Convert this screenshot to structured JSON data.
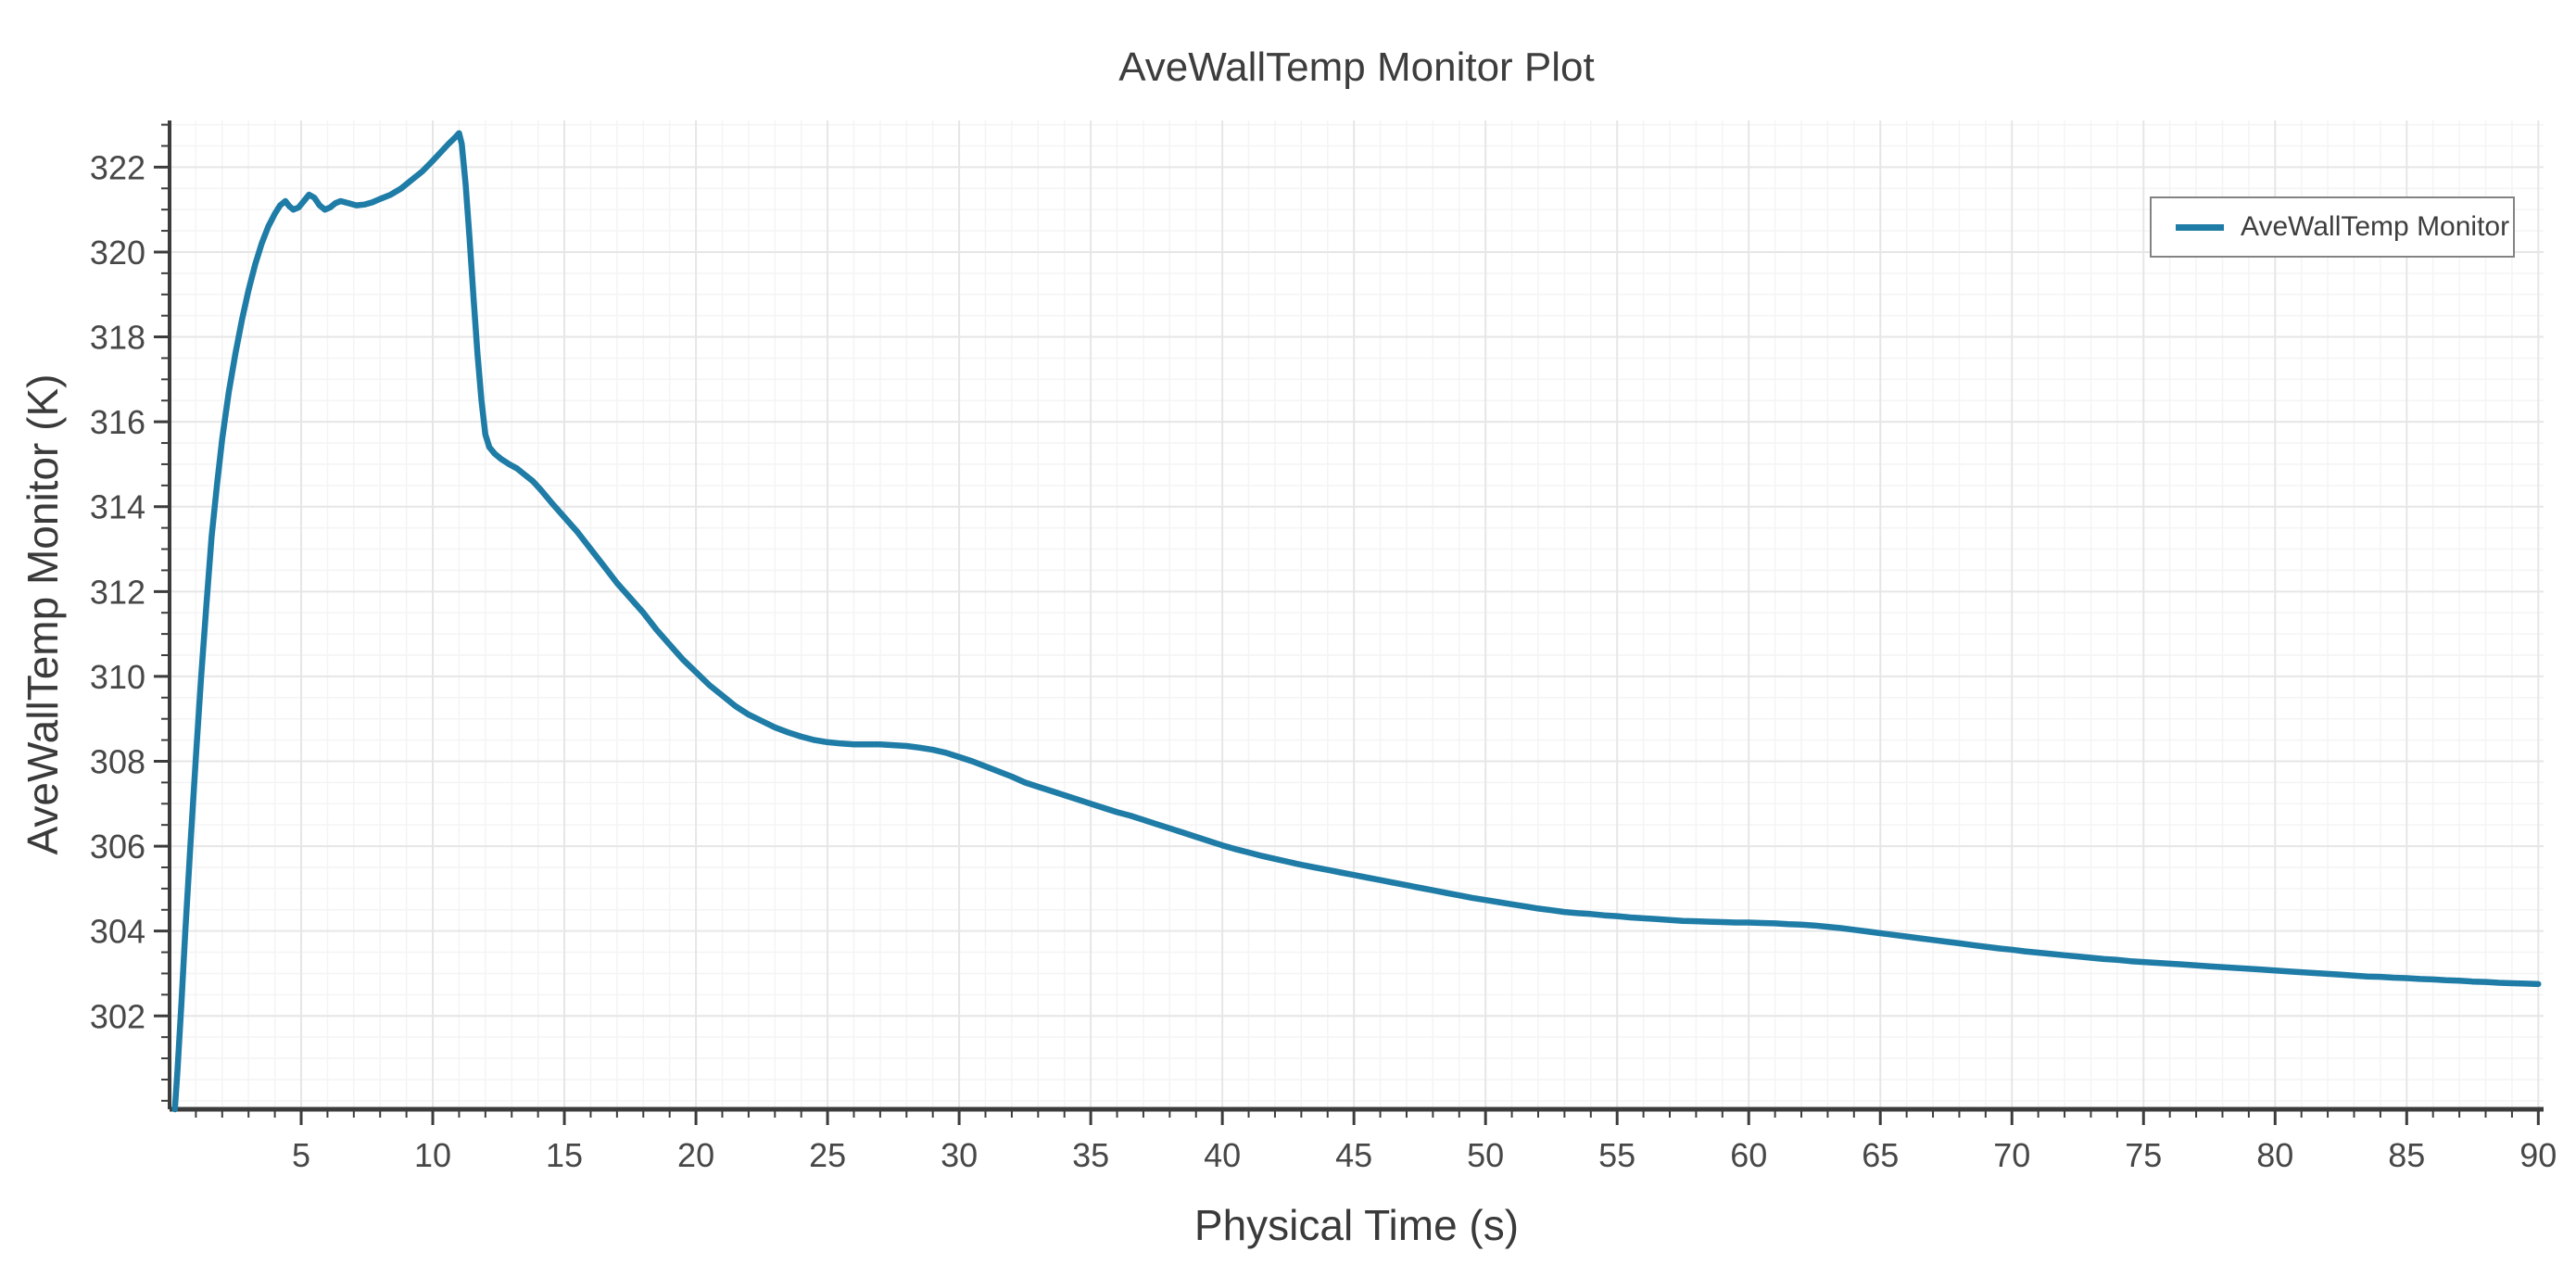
{
  "chart_data": {
    "type": "line",
    "title": "AveWallTemp Monitor Plot",
    "xlabel": "Physical Time (s)",
    "ylabel": "AveWallTemp Monitor (K)",
    "legend": {
      "label": "AveWallTemp Monitor",
      "position": "top-right",
      "border": true
    },
    "axes": {
      "xlim": [
        0,
        90.2
      ],
      "ylim": [
        299.8,
        323.1
      ],
      "x_major_ticks": [
        5,
        10,
        15,
        20,
        25,
        30,
        35,
        40,
        45,
        50,
        55,
        60,
        65,
        70,
        75,
        80,
        85,
        90
      ],
      "x_minor_step": 1,
      "y_major_ticks": [
        302,
        304,
        306,
        308,
        310,
        312,
        314,
        316,
        318,
        320,
        322
      ],
      "y_minor_step": 0.5,
      "grid": true,
      "grid_minor": true
    },
    "colors": {
      "line": "#1e7ca6",
      "grid_major": "#e6e6e6",
      "grid_minor": "#f4f4f4",
      "axis": "#3c3c3c",
      "tick_text": "#474747",
      "title_text": "#3d3d3d",
      "legend_border": "#838383",
      "background": "#ffffff"
    },
    "series": [
      {
        "name": "AveWallTemp Monitor",
        "color": "#1e7ca6",
        "points": [
          [
            0.2,
            299.8
          ],
          [
            0.3,
            300.7
          ],
          [
            0.45,
            302.3
          ],
          [
            0.6,
            304.0
          ],
          [
            0.8,
            306.1
          ],
          [
            1.0,
            308.1
          ],
          [
            1.2,
            310.0
          ],
          [
            1.4,
            311.7
          ],
          [
            1.6,
            313.3
          ],
          [
            1.8,
            314.5
          ],
          [
            2.0,
            315.6
          ],
          [
            2.25,
            316.7
          ],
          [
            2.5,
            317.6
          ],
          [
            2.75,
            318.4
          ],
          [
            3.0,
            319.1
          ],
          [
            3.25,
            319.7
          ],
          [
            3.5,
            320.2
          ],
          [
            3.75,
            320.6
          ],
          [
            4.0,
            320.9
          ],
          [
            4.2,
            321.1
          ],
          [
            4.4,
            321.2
          ],
          [
            4.55,
            321.08
          ],
          [
            4.7,
            321.0
          ],
          [
            4.9,
            321.05
          ],
          [
            5.1,
            321.2
          ],
          [
            5.3,
            321.35
          ],
          [
            5.5,
            321.28
          ],
          [
            5.7,
            321.1
          ],
          [
            5.9,
            321.0
          ],
          [
            6.1,
            321.05
          ],
          [
            6.3,
            321.15
          ],
          [
            6.5,
            321.2
          ],
          [
            6.8,
            321.15
          ],
          [
            7.1,
            321.1
          ],
          [
            7.4,
            321.12
          ],
          [
            7.7,
            321.17
          ],
          [
            8.0,
            321.25
          ],
          [
            8.4,
            321.35
          ],
          [
            8.8,
            321.5
          ],
          [
            9.2,
            321.7
          ],
          [
            9.6,
            321.9
          ],
          [
            10.0,
            322.15
          ],
          [
            10.3,
            322.35
          ],
          [
            10.6,
            322.55
          ],
          [
            10.85,
            322.7
          ],
          [
            11.0,
            322.8
          ],
          [
            11.1,
            322.55
          ],
          [
            11.25,
            321.6
          ],
          [
            11.4,
            320.3
          ],
          [
            11.55,
            318.9
          ],
          [
            11.7,
            317.6
          ],
          [
            11.85,
            316.5
          ],
          [
            12.0,
            315.7
          ],
          [
            12.15,
            315.4
          ],
          [
            12.35,
            315.25
          ],
          [
            12.6,
            315.12
          ],
          [
            12.9,
            315.0
          ],
          [
            13.2,
            314.9
          ],
          [
            13.5,
            314.75
          ],
          [
            13.8,
            314.6
          ],
          [
            14.1,
            314.4
          ],
          [
            14.5,
            314.1
          ],
          [
            15.0,
            313.75
          ],
          [
            15.5,
            313.4
          ],
          [
            16.0,
            313.0
          ],
          [
            16.5,
            312.6
          ],
          [
            17.0,
            312.2
          ],
          [
            17.5,
            311.85
          ],
          [
            18.0,
            311.5
          ],
          [
            18.5,
            311.1
          ],
          [
            19.0,
            310.75
          ],
          [
            19.5,
            310.4
          ],
          [
            20.0,
            310.1
          ],
          [
            20.5,
            309.8
          ],
          [
            21.0,
            309.55
          ],
          [
            21.5,
            309.3
          ],
          [
            22.0,
            309.1
          ],
          [
            22.5,
            308.95
          ],
          [
            23.0,
            308.8
          ],
          [
            23.5,
            308.68
          ],
          [
            24.0,
            308.58
          ],
          [
            24.5,
            308.5
          ],
          [
            25.0,
            308.45
          ],
          [
            25.5,
            308.42
          ],
          [
            26.0,
            308.4
          ],
          [
            26.5,
            308.4
          ],
          [
            27.0,
            308.4
          ],
          [
            27.5,
            308.38
          ],
          [
            28.0,
            308.36
          ],
          [
            28.5,
            308.32
          ],
          [
            29.0,
            308.27
          ],
          [
            29.5,
            308.2
          ],
          [
            30.0,
            308.1
          ],
          [
            30.5,
            308.0
          ],
          [
            31.0,
            307.88
          ],
          [
            31.5,
            307.76
          ],
          [
            32.0,
            307.64
          ],
          [
            32.5,
            307.5
          ],
          [
            33.0,
            307.4
          ],
          [
            33.5,
            307.3
          ],
          [
            34.0,
            307.2
          ],
          [
            34.5,
            307.1
          ],
          [
            35.0,
            307.0
          ],
          [
            35.5,
            306.9
          ],
          [
            36.0,
            306.8
          ],
          [
            36.5,
            306.72
          ],
          [
            37.0,
            306.62
          ],
          [
            37.5,
            306.52
          ],
          [
            38.0,
            306.42
          ],
          [
            38.5,
            306.32
          ],
          [
            39.0,
            306.22
          ],
          [
            39.5,
            306.12
          ],
          [
            40.0,
            306.02
          ],
          [
            40.5,
            305.93
          ],
          [
            41.0,
            305.85
          ],
          [
            41.5,
            305.77
          ],
          [
            42.0,
            305.7
          ],
          [
            42.5,
            305.63
          ],
          [
            43.0,
            305.56
          ],
          [
            43.5,
            305.5
          ],
          [
            44.0,
            305.44
          ],
          [
            44.5,
            305.38
          ],
          [
            45.0,
            305.32
          ],
          [
            45.5,
            305.26
          ],
          [
            46.0,
            305.2
          ],
          [
            46.5,
            305.14
          ],
          [
            47.0,
            305.08
          ],
          [
            47.5,
            305.02
          ],
          [
            48.0,
            304.96
          ],
          [
            48.5,
            304.9
          ],
          [
            49.0,
            304.84
          ],
          [
            49.5,
            304.78
          ],
          [
            50.0,
            304.73
          ],
          [
            50.5,
            304.68
          ],
          [
            51.0,
            304.63
          ],
          [
            51.5,
            304.58
          ],
          [
            52.0,
            304.53
          ],
          [
            52.5,
            304.49
          ],
          [
            53.0,
            304.45
          ],
          [
            53.5,
            304.42
          ],
          [
            54.0,
            304.4
          ],
          [
            54.5,
            304.37
          ],
          [
            55.0,
            304.35
          ],
          [
            55.5,
            304.32
          ],
          [
            56.0,
            304.3
          ],
          [
            56.5,
            304.28
          ],
          [
            57.0,
            304.26
          ],
          [
            57.5,
            304.24
          ],
          [
            58.0,
            304.23
          ],
          [
            58.5,
            304.22
          ],
          [
            59.0,
            304.21
          ],
          [
            59.5,
            304.2
          ],
          [
            60.0,
            304.2
          ],
          [
            60.5,
            304.19
          ],
          [
            61.0,
            304.18
          ],
          [
            61.5,
            304.16
          ],
          [
            62.0,
            304.15
          ],
          [
            62.5,
            304.13
          ],
          [
            63.0,
            304.1
          ],
          [
            63.5,
            304.07
          ],
          [
            64.0,
            304.03
          ],
          [
            64.5,
            303.99
          ],
          [
            65.0,
            303.95
          ],
          [
            65.5,
            303.91
          ],
          [
            66.0,
            303.87
          ],
          [
            66.5,
            303.83
          ],
          [
            67.0,
            303.79
          ],
          [
            67.5,
            303.75
          ],
          [
            68.0,
            303.71
          ],
          [
            68.5,
            303.67
          ],
          [
            69.0,
            303.63
          ],
          [
            69.5,
            303.59
          ],
          [
            70.0,
            303.56
          ],
          [
            70.5,
            303.52
          ],
          [
            71.0,
            303.49
          ],
          [
            71.5,
            303.46
          ],
          [
            72.0,
            303.43
          ],
          [
            72.5,
            303.4
          ],
          [
            73.0,
            303.37
          ],
          [
            73.5,
            303.34
          ],
          [
            74.0,
            303.32
          ],
          [
            74.5,
            303.29
          ],
          [
            75.0,
            303.27
          ],
          [
            75.5,
            303.25
          ],
          [
            76.0,
            303.23
          ],
          [
            76.5,
            303.21
          ],
          [
            77.0,
            303.19
          ],
          [
            77.5,
            303.17
          ],
          [
            78.0,
            303.15
          ],
          [
            78.5,
            303.13
          ],
          [
            79.0,
            303.11
          ],
          [
            79.5,
            303.09
          ],
          [
            80.0,
            303.07
          ],
          [
            80.5,
            303.05
          ],
          [
            81.0,
            303.03
          ],
          [
            81.5,
            303.01
          ],
          [
            82.0,
            302.99
          ],
          [
            82.5,
            302.97
          ],
          [
            83.0,
            302.95
          ],
          [
            83.5,
            302.93
          ],
          [
            84.0,
            302.92
          ],
          [
            84.5,
            302.9
          ],
          [
            85.0,
            302.89
          ],
          [
            85.5,
            302.87
          ],
          [
            86.0,
            302.86
          ],
          [
            86.5,
            302.84
          ],
          [
            87.0,
            302.83
          ],
          [
            87.5,
            302.81
          ],
          [
            88.0,
            302.8
          ],
          [
            88.5,
            302.78
          ],
          [
            89.0,
            302.77
          ],
          [
            89.5,
            302.76
          ],
          [
            90.0,
            302.75
          ]
        ]
      }
    ]
  }
}
